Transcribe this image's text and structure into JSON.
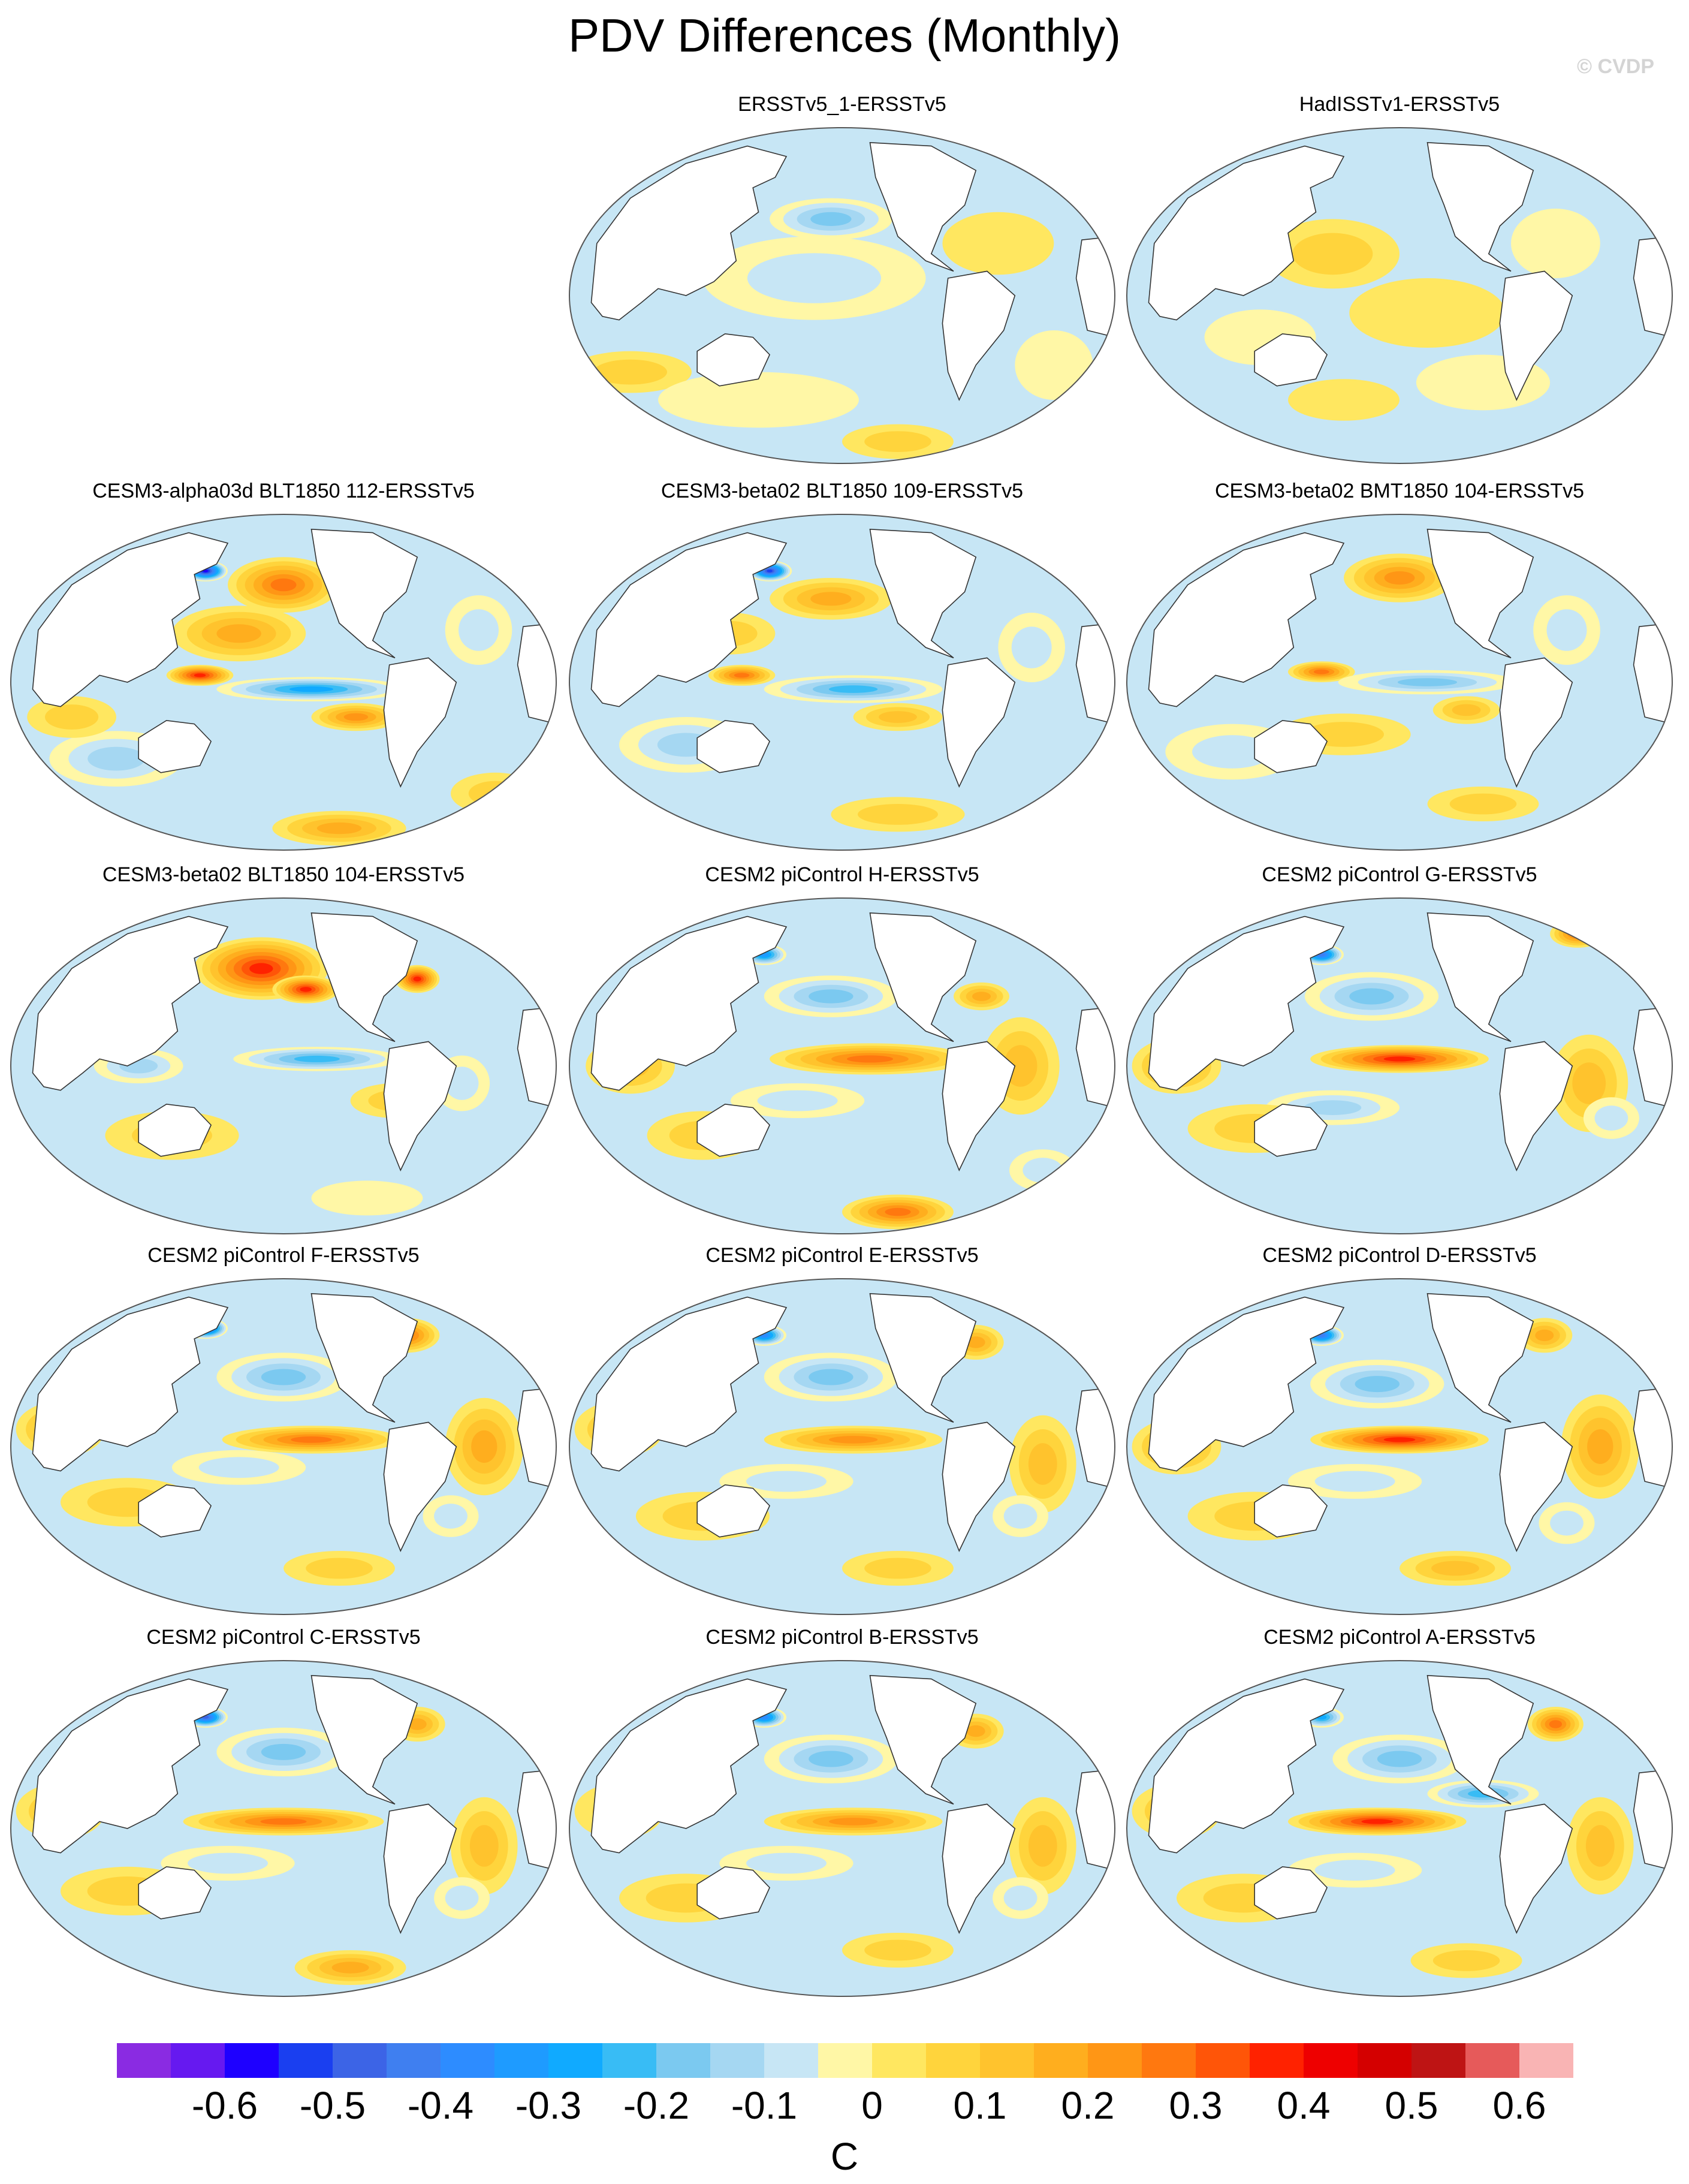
{
  "title": "PDV Differences (Monthly)",
  "watermark": "© CVDP",
  "colorbar": {
    "unit": "C",
    "tick_labels": [
      "-0.6",
      "-0.5",
      "-0.4",
      "-0.3",
      "-0.2",
      "-0.1",
      "0",
      "0.1",
      "0.2",
      "0.3",
      "0.4",
      "0.5",
      "0.6"
    ],
    "colors": [
      "#8a2be2",
      "#6619f0",
      "#1e00ff",
      "#1a3ff0",
      "#3c64e6",
      "#3f7ff0",
      "#2d8cff",
      "#1e9bff",
      "#10aaff",
      "#38bcf5",
      "#7bc9f0",
      "#a5d7f2",
      "#c7e6f5",
      "#fff7a6",
      "#ffe760",
      "#ffd43c",
      "#ffc32d",
      "#ffae1e",
      "#ff9615",
      "#ff780f",
      "#ff5508",
      "#ff2200",
      "#ee0000",
      "#d40000",
      "#be1414",
      "#e65a5a",
      "#f9b4b4"
    ]
  },
  "chart_data": {
    "type": "heatmap",
    "projection": "Robinson, centered on the Pacific",
    "variable": "Pacific Decadal Variability pattern difference",
    "units": "C",
    "contour_levels": [
      -0.65,
      -0.6,
      -0.55,
      -0.5,
      -0.45,
      -0.4,
      -0.35,
      -0.3,
      -0.25,
      -0.2,
      -0.15,
      -0.1,
      -0.05,
      0,
      0.05,
      0.1,
      0.15,
      0.2,
      0.25,
      0.3,
      0.35,
      0.4,
      0.45,
      0.5,
      0.55,
      0.6,
      0.65
    ],
    "panels": [
      {
        "title": "ERSSTv5_1-ERSSTv5",
        "blobs": [
          [
            0.48,
            0.28,
            0.11,
            0.06,
            -0.18
          ],
          [
            0.45,
            0.45,
            0.2,
            0.12,
            -0.08
          ],
          [
            0.78,
            0.35,
            0.1,
            0.09,
            0.05
          ],
          [
            0.12,
            0.72,
            0.11,
            0.06,
            0.08
          ],
          [
            0.6,
            0.92,
            0.1,
            0.05,
            0.12
          ],
          [
            0.35,
            0.8,
            0.18,
            0.08,
            -0.06
          ],
          [
            0.88,
            0.7,
            0.07,
            0.1,
            -0.07
          ]
        ]
      },
      {
        "title": "HadISSTv1-ERSSTv5",
        "blobs": [
          [
            0.38,
            0.38,
            0.12,
            0.1,
            0.08
          ],
          [
            0.55,
            0.55,
            0.14,
            0.1,
            0.07
          ],
          [
            0.25,
            0.62,
            0.1,
            0.08,
            -0.06
          ],
          [
            0.78,
            0.35,
            0.08,
            0.1,
            -0.07
          ],
          [
            0.65,
            0.75,
            0.12,
            0.08,
            -0.06
          ],
          [
            0.4,
            0.8,
            0.1,
            0.06,
            0.06
          ]
        ]
      },
      {
        "title": "CESM3-alpha03d BLT1850 112-ERSSTv5",
        "blobs": [
          [
            0.36,
            0.18,
            0.04,
            0.03,
            -0.62
          ],
          [
            0.5,
            0.22,
            0.1,
            0.08,
            0.3
          ],
          [
            0.42,
            0.36,
            0.12,
            0.08,
            0.18
          ],
          [
            0.35,
            0.48,
            0.06,
            0.03,
            0.42
          ],
          [
            0.55,
            0.52,
            0.17,
            0.035,
            -0.28
          ],
          [
            0.63,
            0.6,
            0.08,
            0.04,
            0.26
          ],
          [
            0.6,
            0.92,
            0.12,
            0.05,
            0.22
          ],
          [
            0.85,
            0.35,
            0.06,
            0.1,
            -0.1
          ],
          [
            0.2,
            0.72,
            0.12,
            0.08,
            -0.14
          ],
          [
            0.88,
            0.82,
            0.08,
            0.06,
            0.12
          ],
          [
            0.12,
            0.6,
            0.08,
            0.06,
            0.1
          ]
        ]
      },
      {
        "title": "CESM3-beta02 BLT1850 109-ERSSTv5",
        "blobs": [
          [
            0.37,
            0.18,
            0.04,
            0.03,
            -0.55
          ],
          [
            0.48,
            0.26,
            0.11,
            0.06,
            0.22
          ],
          [
            0.32,
            0.48,
            0.06,
            0.03,
            0.3
          ],
          [
            0.52,
            0.52,
            0.16,
            0.04,
            -0.25
          ],
          [
            0.6,
            0.6,
            0.08,
            0.04,
            0.15
          ],
          [
            0.22,
            0.68,
            0.12,
            0.08,
            -0.14
          ],
          [
            0.84,
            0.4,
            0.06,
            0.1,
            -0.1
          ],
          [
            0.6,
            0.88,
            0.12,
            0.05,
            0.1
          ],
          [
            0.3,
            0.36,
            0.08,
            0.06,
            0.12
          ]
        ]
      },
      {
        "title": "CESM3-beta02 BMT1850 104-ERSSTv5",
        "blobs": [
          [
            0.5,
            0.2,
            0.1,
            0.07,
            0.26
          ],
          [
            0.36,
            0.47,
            0.06,
            0.03,
            0.3
          ],
          [
            0.55,
            0.5,
            0.16,
            0.035,
            -0.22
          ],
          [
            0.62,
            0.58,
            0.06,
            0.04,
            0.14
          ],
          [
            0.4,
            0.65,
            0.12,
            0.06,
            0.08
          ],
          [
            0.2,
            0.7,
            0.12,
            0.08,
            -0.12
          ],
          [
            0.8,
            0.35,
            0.06,
            0.1,
            -0.1
          ],
          [
            0.65,
            0.85,
            0.1,
            0.05,
            0.1
          ]
        ]
      },
      {
        "title": "CESM3-beta02 BLT1850 104-ERSSTv5",
        "blobs": [
          [
            0.46,
            0.22,
            0.12,
            0.09,
            0.38
          ],
          [
            0.54,
            0.28,
            0.06,
            0.04,
            0.42
          ],
          [
            0.56,
            0.48,
            0.15,
            0.035,
            -0.26
          ],
          [
            0.24,
            0.5,
            0.08,
            0.05,
            -0.14
          ],
          [
            0.3,
            0.7,
            0.12,
            0.07,
            0.1
          ],
          [
            0.7,
            0.6,
            0.08,
            0.05,
            0.1
          ],
          [
            0.74,
            0.25,
            0.04,
            0.04,
            0.4
          ],
          [
            0.82,
            0.55,
            0.05,
            0.08,
            -0.1
          ],
          [
            0.65,
            0.88,
            0.1,
            0.05,
            -0.06
          ]
        ]
      },
      {
        "title": "CESM2 piControl H-ERSSTv5",
        "blobs": [
          [
            0.36,
            0.18,
            0.04,
            0.03,
            -0.35
          ],
          [
            0.48,
            0.3,
            0.12,
            0.06,
            -0.2
          ],
          [
            0.55,
            0.48,
            0.18,
            0.045,
            0.32
          ],
          [
            0.42,
            0.6,
            0.12,
            0.05,
            -0.12
          ],
          [
            0.6,
            0.92,
            0.1,
            0.05,
            0.3
          ],
          [
            0.12,
            0.5,
            0.08,
            0.08,
            0.16
          ],
          [
            0.82,
            0.5,
            0.07,
            0.14,
            0.14
          ],
          [
            0.75,
            0.3,
            0.05,
            0.04,
            0.18
          ],
          [
            0.25,
            0.7,
            0.1,
            0.07,
            0.1
          ],
          [
            0.86,
            0.8,
            0.06,
            0.06,
            -0.08
          ]
        ]
      },
      {
        "title": "CESM2 piControl G-ERSSTv5",
        "blobs": [
          [
            0.36,
            0.18,
            0.04,
            0.03,
            -0.45
          ],
          [
            0.45,
            0.3,
            0.12,
            0.07,
            -0.2
          ],
          [
            0.5,
            0.48,
            0.16,
            0.04,
            0.38
          ],
          [
            0.38,
            0.62,
            0.12,
            0.05,
            -0.14
          ],
          [
            0.82,
            0.12,
            0.05,
            0.04,
            0.3
          ],
          [
            0.84,
            0.55,
            0.07,
            0.14,
            0.16
          ],
          [
            0.1,
            0.5,
            0.08,
            0.08,
            0.2
          ],
          [
            0.24,
            0.68,
            0.12,
            0.07,
            0.12
          ],
          [
            0.88,
            0.65,
            0.05,
            0.06,
            -0.1
          ]
        ]
      },
      {
        "title": "CESM2 piControl F-ERSSTv5",
        "blobs": [
          [
            0.36,
            0.16,
            0.04,
            0.03,
            -0.55
          ],
          [
            0.5,
            0.3,
            0.12,
            0.07,
            -0.22
          ],
          [
            0.55,
            0.48,
            0.16,
            0.04,
            0.3
          ],
          [
            0.42,
            0.56,
            0.12,
            0.05,
            -0.12
          ],
          [
            0.72,
            0.18,
            0.06,
            0.05,
            0.3
          ],
          [
            0.86,
            0.5,
            0.07,
            0.14,
            0.18
          ],
          [
            0.1,
            0.45,
            0.08,
            0.08,
            0.18
          ],
          [
            0.22,
            0.66,
            0.12,
            0.07,
            0.1
          ],
          [
            0.6,
            0.85,
            0.1,
            0.05,
            0.12
          ],
          [
            0.8,
            0.7,
            0.05,
            0.06,
            -0.1
          ]
        ]
      },
      {
        "title": "CESM2 piControl E-ERSSTv5",
        "blobs": [
          [
            0.36,
            0.18,
            0.04,
            0.03,
            -0.4
          ],
          [
            0.48,
            0.3,
            0.12,
            0.07,
            -0.18
          ],
          [
            0.52,
            0.48,
            0.16,
            0.04,
            0.26
          ],
          [
            0.4,
            0.6,
            0.12,
            0.05,
            -0.12
          ],
          [
            0.74,
            0.2,
            0.05,
            0.05,
            0.18
          ],
          [
            0.86,
            0.55,
            0.06,
            0.14,
            0.15
          ],
          [
            0.1,
            0.45,
            0.08,
            0.08,
            0.14
          ],
          [
            0.25,
            0.7,
            0.12,
            0.07,
            0.1
          ],
          [
            0.6,
            0.85,
            0.1,
            0.05,
            0.1
          ],
          [
            0.82,
            0.7,
            0.05,
            0.06,
            -0.1
          ]
        ]
      },
      {
        "title": "CESM2 piControl D-ERSSTv5",
        "blobs": [
          [
            0.36,
            0.18,
            0.04,
            0.03,
            -0.45
          ],
          [
            0.46,
            0.32,
            0.12,
            0.07,
            -0.2
          ],
          [
            0.5,
            0.48,
            0.16,
            0.04,
            0.38
          ],
          [
            0.42,
            0.6,
            0.12,
            0.05,
            -0.12
          ],
          [
            0.76,
            0.18,
            0.05,
            0.05,
            0.2
          ],
          [
            0.86,
            0.5,
            0.07,
            0.15,
            0.2
          ],
          [
            0.1,
            0.5,
            0.08,
            0.08,
            0.2
          ],
          [
            0.24,
            0.7,
            0.12,
            0.07,
            0.12
          ],
          [
            0.6,
            0.85,
            0.1,
            0.05,
            0.16
          ],
          [
            0.8,
            0.72,
            0.05,
            0.06,
            -0.1
          ]
        ]
      },
      {
        "title": "CESM2 piControl C-ERSSTv5",
        "blobs": [
          [
            0.36,
            0.18,
            0.04,
            0.03,
            -0.5
          ],
          [
            0.5,
            0.28,
            0.12,
            0.07,
            -0.18
          ],
          [
            0.5,
            0.48,
            0.18,
            0.04,
            0.3
          ],
          [
            0.4,
            0.6,
            0.12,
            0.05,
            -0.12
          ],
          [
            0.74,
            0.2,
            0.05,
            0.05,
            0.18
          ],
          [
            0.86,
            0.55,
            0.06,
            0.14,
            0.16
          ],
          [
            0.1,
            0.45,
            0.08,
            0.08,
            0.16
          ],
          [
            0.22,
            0.68,
            0.12,
            0.07,
            0.1
          ],
          [
            0.62,
            0.9,
            0.1,
            0.05,
            0.22
          ],
          [
            0.82,
            0.7,
            0.05,
            0.06,
            -0.1
          ]
        ]
      },
      {
        "title": "CESM2 piControl B-ERSSTv5",
        "blobs": [
          [
            0.36,
            0.18,
            0.04,
            0.03,
            -0.4
          ],
          [
            0.48,
            0.3,
            0.12,
            0.07,
            -0.18
          ],
          [
            0.52,
            0.48,
            0.16,
            0.04,
            0.24
          ],
          [
            0.4,
            0.6,
            0.12,
            0.05,
            -0.12
          ],
          [
            0.74,
            0.22,
            0.05,
            0.05,
            0.18
          ],
          [
            0.86,
            0.55,
            0.06,
            0.14,
            0.14
          ],
          [
            0.1,
            0.45,
            0.08,
            0.08,
            0.12
          ],
          [
            0.22,
            0.7,
            0.12,
            0.07,
            0.1
          ],
          [
            0.6,
            0.85,
            0.1,
            0.05,
            0.1
          ],
          [
            0.82,
            0.7,
            0.05,
            0.06,
            -0.1
          ]
        ]
      },
      {
        "title": "CESM2 piControl A-ERSSTv5",
        "blobs": [
          [
            0.36,
            0.18,
            0.04,
            0.03,
            -0.3
          ],
          [
            0.5,
            0.3,
            0.12,
            0.07,
            -0.18
          ],
          [
            0.46,
            0.48,
            0.16,
            0.04,
            0.4
          ],
          [
            0.42,
            0.62,
            0.12,
            0.05,
            -0.12
          ],
          [
            0.78,
            0.2,
            0.05,
            0.05,
            0.28
          ],
          [
            0.86,
            0.55,
            0.06,
            0.14,
            0.14
          ],
          [
            0.1,
            0.45,
            0.08,
            0.08,
            0.14
          ],
          [
            0.22,
            0.7,
            0.12,
            0.07,
            0.1
          ],
          [
            0.62,
            0.88,
            0.1,
            0.05,
            0.12
          ],
          [
            0.65,
            0.4,
            0.1,
            0.04,
            -0.26
          ]
        ]
      }
    ]
  }
}
